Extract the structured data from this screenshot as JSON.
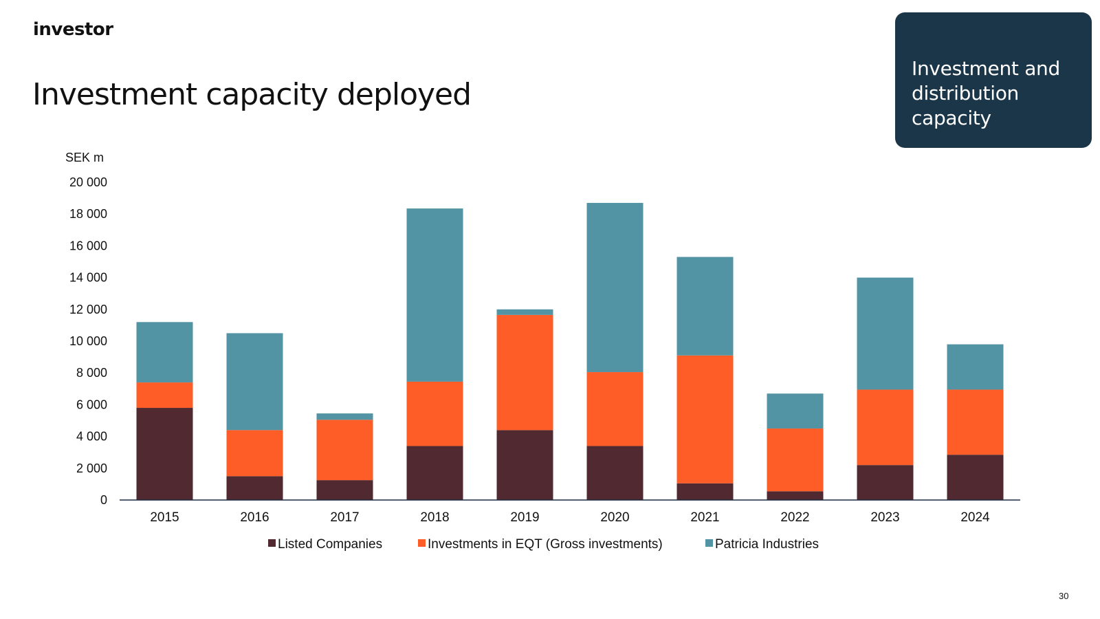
{
  "header": {
    "logo": "investor",
    "title": "Investment capacity deployed"
  },
  "section_box": {
    "lines": [
      "Investment and",
      "distribution",
      "capacity"
    ]
  },
  "page_number": "30",
  "colors": {
    "listed": "#512a31",
    "eqt": "#ff5d28",
    "patricia": "#5294a4",
    "axis": "#1b2a40",
    "box": "#1b3649"
  },
  "chart_data": {
    "type": "bar",
    "stacked": true,
    "title": "",
    "ylabel": "SEK m",
    "xlabel": "",
    "ylim": [
      0,
      20000
    ],
    "yticks": [
      0,
      2000,
      4000,
      6000,
      8000,
      10000,
      12000,
      14000,
      16000,
      18000,
      20000
    ],
    "ytick_labels": [
      "0",
      "2 000",
      "4 000",
      "6 000",
      "8 000",
      "10 000",
      "12 000",
      "14 000",
      "16 000",
      "18 000",
      "20 000"
    ],
    "grid": false,
    "legend_position": "bottom",
    "categories": [
      "2015",
      "2016",
      "2017",
      "2018",
      "2019",
      "2020",
      "2021",
      "2022",
      "2023",
      "2024"
    ],
    "series": [
      {
        "name": "Listed Companies",
        "color": "#512a31",
        "values": [
          5800,
          1500,
          1250,
          3400,
          4400,
          3400,
          1050,
          550,
          2200,
          2850
        ]
      },
      {
        "name": "Investments in EQT (Gross investments)",
        "color": "#ff5d28",
        "values": [
          1600,
          2900,
          3800,
          4050,
          7250,
          4650,
          8050,
          3950,
          4750,
          4100
        ]
      },
      {
        "name": "Patricia Industries",
        "color": "#5294a4",
        "values": [
          3800,
          6100,
          400,
          10900,
          350,
          10650,
          6200,
          2200,
          7050,
          2850
        ]
      }
    ]
  }
}
